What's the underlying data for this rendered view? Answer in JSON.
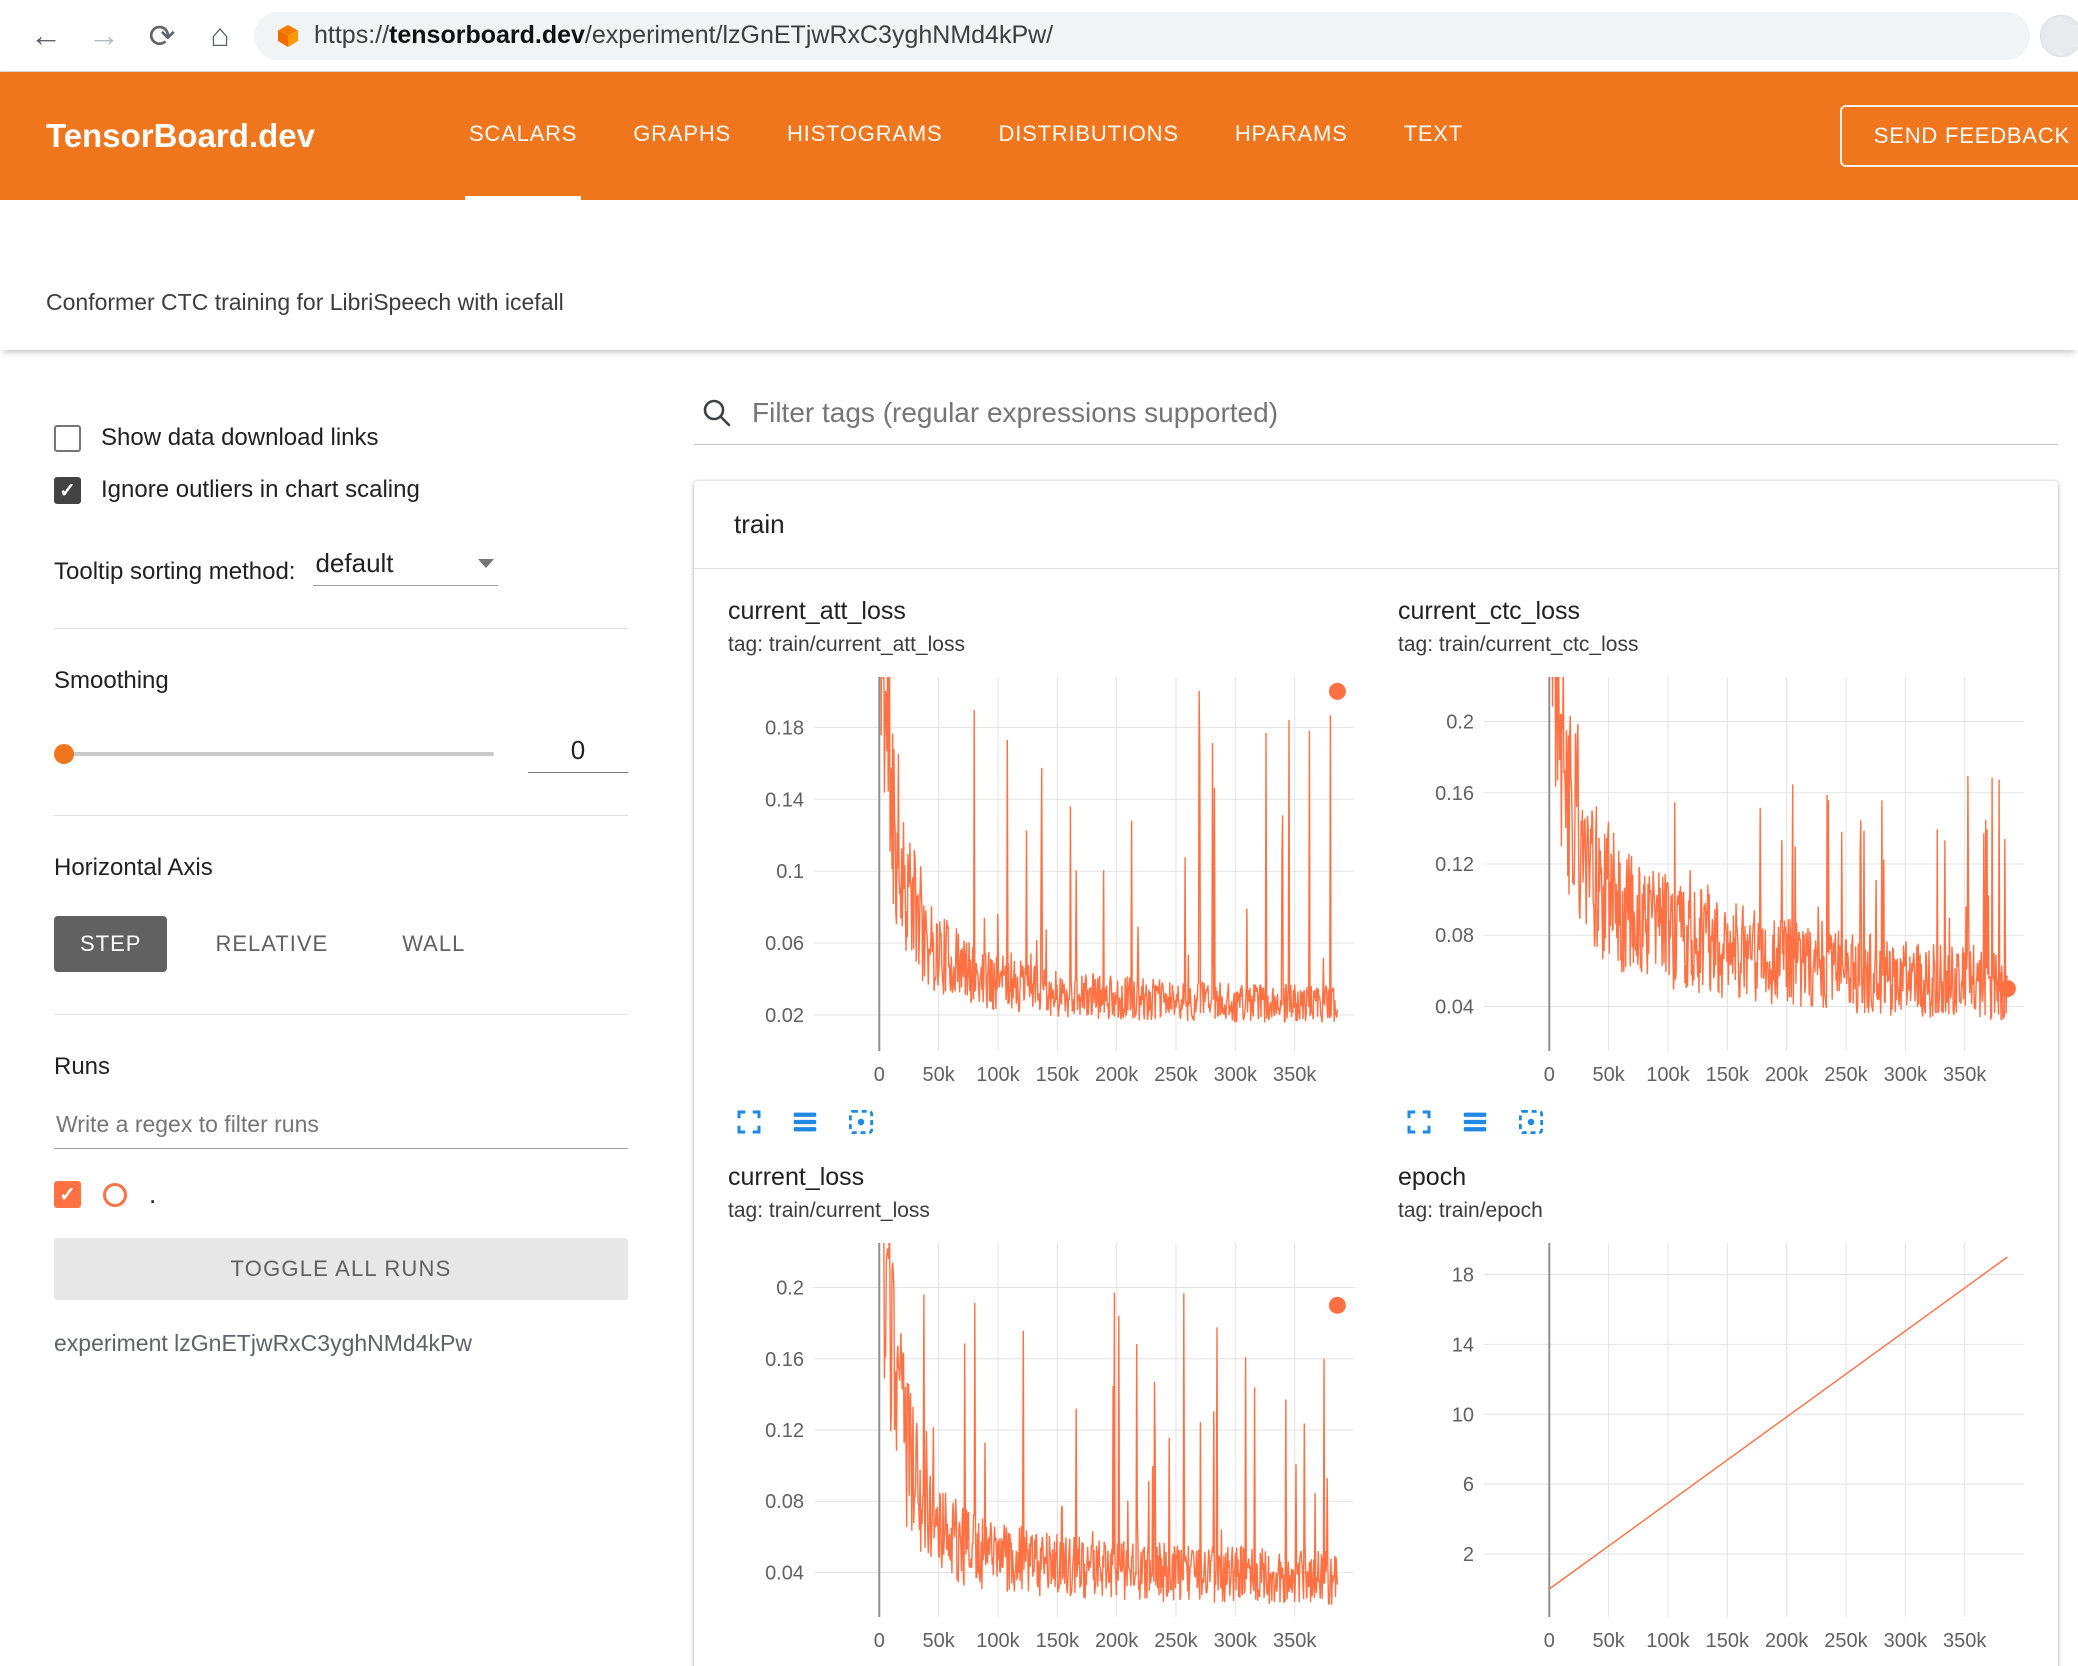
{
  "icons": {
    "back": "back-arrow-icon",
    "forward": "forward-arrow-icon",
    "reload": "reload-icon",
    "home": "home-icon",
    "favicon": "tensorboard-favicon",
    "search": "search-icon",
    "dropdown_caret": "chevron-down-icon",
    "chart_toolbar": [
      "fullscreen-icon",
      "view-data-icon",
      "fit-domain-icon"
    ]
  },
  "colors": {
    "header_orange": "#f0761e",
    "series_orange": "#ff7043",
    "toolbar_blue": "#1e88e5",
    "grid_gray": "#e3e3e3",
    "axis_gray": "#8f8f8f"
  },
  "browser": {
    "url_scheme": "https://",
    "url_host": "tensorboard.dev",
    "url_path": "/experiment/lzGnETjwRxC3yghNMd4kPw/"
  },
  "header": {
    "brand": "TensorBoard.dev",
    "tabs": [
      {
        "label": "SCALARS",
        "active": true
      },
      {
        "label": "GRAPHS",
        "active": false
      },
      {
        "label": "HISTOGRAMS",
        "active": false
      },
      {
        "label": "DISTRIBUTIONS",
        "active": false
      },
      {
        "label": "HPARAMS",
        "active": false
      },
      {
        "label": "TEXT",
        "active": false
      }
    ],
    "feedback_button": "SEND FEEDBACK"
  },
  "subheader": {
    "experiment_title": "Conformer CTC training for LibriSpeech with icefall"
  },
  "sidebar": {
    "show_download": {
      "label": "Show data download links",
      "checked": false
    },
    "ignore_outliers": {
      "label": "Ignore outliers in chart scaling",
      "checked": true
    },
    "tooltip_sorting": {
      "label": "Tooltip sorting method:",
      "value": "default"
    },
    "smoothing": {
      "label": "Smoothing",
      "value": "0"
    },
    "horizontal_axis": {
      "label": "Horizontal Axis",
      "options": [
        {
          "label": "STEP",
          "selected": true
        },
        {
          "label": "RELATIVE",
          "selected": false
        },
        {
          "label": "WALL",
          "selected": false
        }
      ]
    },
    "runs": {
      "label": "Runs",
      "filter_placeholder": "Write a regex to filter runs",
      "run_item": {
        "label": ".",
        "checked": true
      },
      "toggle_button": "TOGGLE ALL RUNS",
      "experiment_note": "experiment lzGnETjwRxC3yghNMd4kPw"
    }
  },
  "main": {
    "filter_placeholder": "Filter tags (regular expressions supported)",
    "section_title": "train"
  },
  "chart_data": [
    {
      "type": "line",
      "title": "current_att_loss",
      "subtitle": "tag: train/current_att_loss",
      "xlim": [
        -55000,
        400000
      ],
      "ylim": [
        0,
        0.208
      ],
      "xticks": {
        "values": [
          0,
          50000,
          100000,
          150000,
          200000,
          250000,
          300000,
          350000
        ],
        "labels": [
          "0",
          "50k",
          "100k",
          "150k",
          "200k",
          "250k",
          "300k",
          "350k"
        ]
      },
      "yticks": [
        0.02,
        0.06,
        0.1,
        0.14,
        0.18
      ],
      "series": {
        "style": "noisy",
        "seed": 11,
        "points": 720,
        "x_start": 0,
        "x_end": 386000,
        "baseline_x": [
          0,
          4000,
          15000,
          40000,
          80000,
          150000,
          250000,
          386000
        ],
        "baseline_y": [
          0.32,
          0.2,
          0.11,
          0.06,
          0.042,
          0.032,
          0.028,
          0.026
        ],
        "jitter": 0.55,
        "spike_prob": 0.06,
        "spike_top": 0.205
      },
      "end_marker": {
        "x": 386000,
        "y": 0.2
      }
    },
    {
      "type": "line",
      "title": "current_ctc_loss",
      "subtitle": "tag: train/current_ctc_loss",
      "xlim": [
        -55000,
        400000
      ],
      "ylim": [
        0.015,
        0.225
      ],
      "xticks": {
        "values": [
          0,
          50000,
          100000,
          150000,
          200000,
          250000,
          300000,
          350000
        ],
        "labels": [
          "0",
          "50k",
          "100k",
          "150k",
          "200k",
          "250k",
          "300k",
          "350k"
        ]
      },
      "yticks": [
        0.04,
        0.08,
        0.12,
        0.16,
        0.2
      ],
      "series": {
        "style": "noisy",
        "seed": 22,
        "points": 720,
        "x_start": 0,
        "x_end": 386000,
        "baseline_x": [
          0,
          4000,
          15000,
          40000,
          80000,
          150000,
          250000,
          386000
        ],
        "baseline_y": [
          0.4,
          0.26,
          0.17,
          0.115,
          0.09,
          0.075,
          0.062,
          0.052
        ],
        "jitter": 0.5,
        "spike_prob": 0.055,
        "spike_top": 0.175
      },
      "end_marker": {
        "x": 386000,
        "y": 0.05
      }
    },
    {
      "type": "line",
      "title": "current_loss",
      "subtitle": "tag: train/current_loss",
      "xlim": [
        -55000,
        400000
      ],
      "ylim": [
        0.015,
        0.225
      ],
      "xticks": {
        "values": [
          0,
          50000,
          100000,
          150000,
          200000,
          250000,
          300000,
          350000
        ],
        "labels": [
          "0",
          "50k",
          "100k",
          "150k",
          "200k",
          "250k",
          "300k",
          "350k"
        ]
      },
      "yticks": [
        0.04,
        0.08,
        0.12,
        0.16,
        0.2
      ],
      "series": {
        "style": "noisy",
        "seed": 33,
        "points": 720,
        "x_start": 0,
        "x_end": 386000,
        "baseline_x": [
          0,
          4000,
          15000,
          40000,
          80000,
          150000,
          250000,
          386000
        ],
        "baseline_y": [
          0.36,
          0.22,
          0.13,
          0.07,
          0.052,
          0.044,
          0.04,
          0.037
        ],
        "jitter": 0.55,
        "spike_prob": 0.06,
        "spike_top": 0.2
      },
      "end_marker": {
        "x": 386000,
        "y": 0.19
      }
    },
    {
      "type": "line",
      "title": "epoch",
      "subtitle": "tag: train/epoch",
      "xlim": [
        -55000,
        400000
      ],
      "ylim": [
        -1.6,
        19.8
      ],
      "xticks": {
        "values": [
          0,
          50000,
          100000,
          150000,
          200000,
          250000,
          300000,
          350000
        ],
        "labels": [
          "0",
          "50k",
          "100k",
          "150k",
          "200k",
          "250k",
          "300k",
          "350k"
        ]
      },
      "yticks": [
        2,
        6,
        10,
        14,
        18
      ],
      "series": {
        "style": "linear",
        "points_xy": [
          [
            0,
            0
          ],
          [
            386000,
            19.0
          ]
        ]
      }
    }
  ]
}
